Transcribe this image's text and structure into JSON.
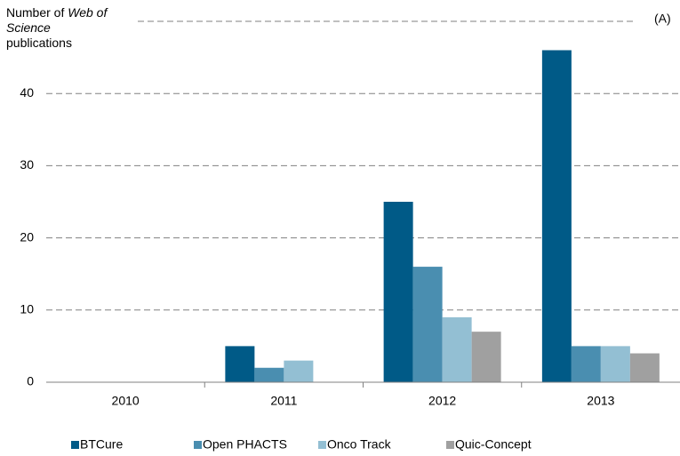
{
  "chart_data": {
    "type": "bar",
    "ylabel_parts": [
      "Number of",
      "Web of Science",
      "publications"
    ],
    "annotation": "(A)",
    "categories": [
      "2010",
      "2011",
      "2012",
      "2013"
    ],
    "series": [
      {
        "name": "BTCure",
        "color": "#005a87",
        "values": [
          0,
          5,
          25,
          46
        ]
      },
      {
        "name": "Open PHACTS",
        "color": "#4a8eb0",
        "values": [
          0,
          2,
          16,
          5
        ]
      },
      {
        "name": "Onco Track",
        "color": "#93bfd3",
        "values": [
          0,
          3,
          9,
          5
        ]
      },
      {
        "name": "Quic-Concept",
        "color": "#a0a0a0",
        "values": [
          0,
          0,
          7,
          4
        ]
      }
    ],
    "ylim": [
      0,
      50
    ],
    "yticks": [
      0,
      10,
      20,
      30,
      40
    ],
    "grid": true
  }
}
